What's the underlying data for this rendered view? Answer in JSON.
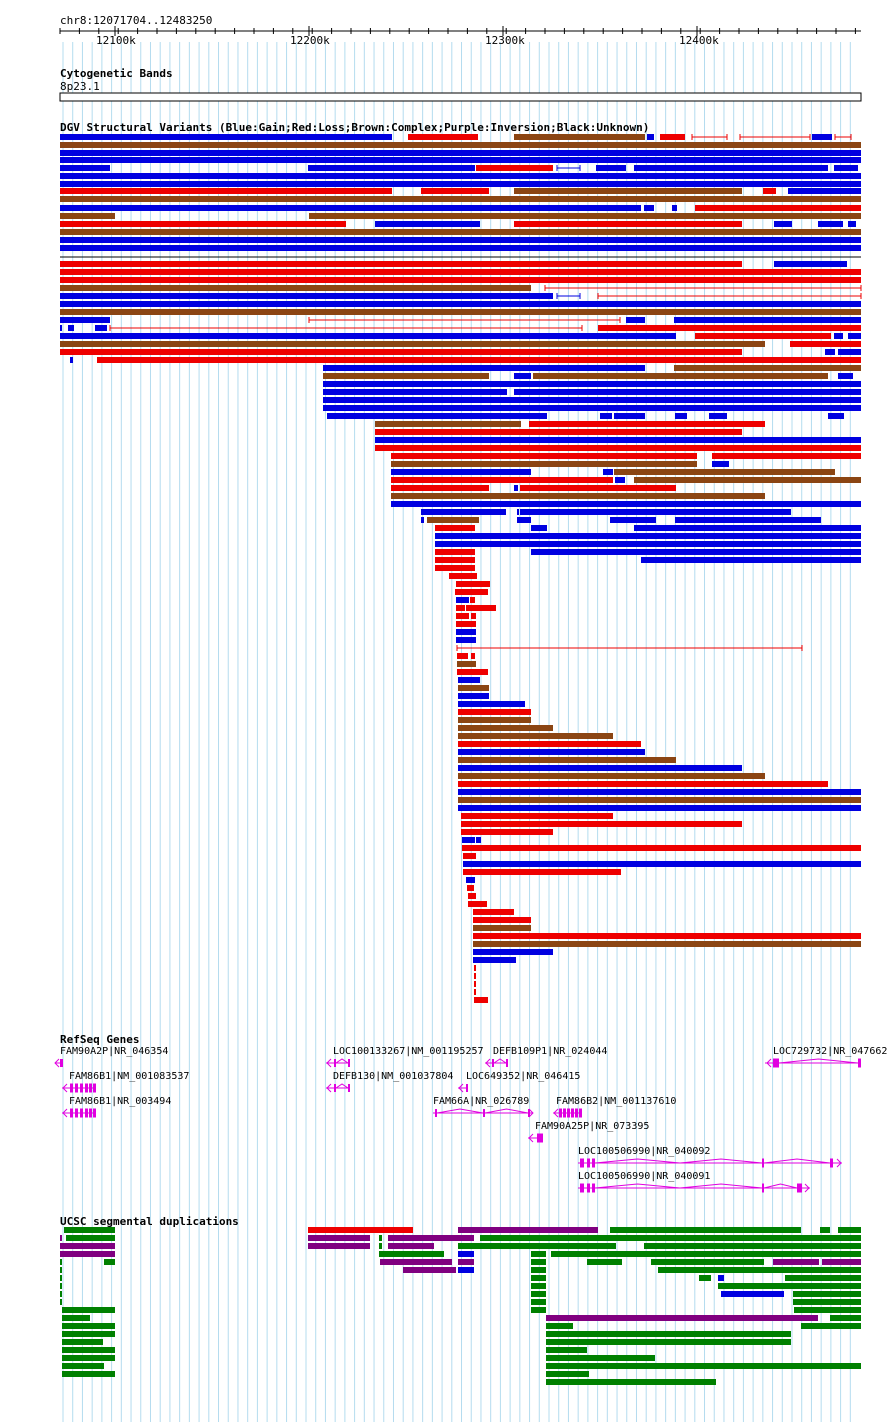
{
  "position": "chr8:12071704..12483250",
  "ruler": {
    "start": 12071704,
    "end": 12483250,
    "ticks": [
      "12100k",
      "12200k",
      "12300k",
      "12400k"
    ]
  },
  "cytoband": {
    "title": "Cytogenetic Bands",
    "band": "8p23.1"
  },
  "dgv": {
    "title": "DGV Structural Variants (Blue:Gain;Red:Loss;Brown:Complex;Purple:Inversion;Black:Unknown)",
    "colors": {
      "gain": "#0000e0",
      "loss": "#ee0000",
      "complex": "#8b4513",
      "inversion": "#800080"
    }
  },
  "refseq": {
    "title": "RefSeq Genes",
    "gene_color": "#e000e0",
    "genes": [
      {
        "label": "FAM90A2P|NR_046354"
      },
      {
        "label": "LOC100133267|NM_001195257"
      },
      {
        "label": "DEFB109P1|NR_024044"
      },
      {
        "label": "LOC729732|NR_047662"
      },
      {
        "label": "FAM86B1|NM_001083537"
      },
      {
        "label": "DEFB130|NM_001037804"
      },
      {
        "label": "LOC649352|NR_046415"
      },
      {
        "label": "FAM86B1|NR_003494"
      },
      {
        "label": "FAM66A|NR_026789"
      },
      {
        "label": "FAM86B2|NM_001137610"
      },
      {
        "label": "FAM90A25P|NR_073395"
      },
      {
        "label": "LOC100506990|NR_040092"
      },
      {
        "label": "LOC100506990|NR_040091"
      }
    ]
  },
  "segdups": {
    "title": "UCSC segmental duplications",
    "colors": {
      "green": "#008000",
      "purple": "#800080",
      "red": "#ee0000",
      "blue": "#0000e0"
    }
  }
}
